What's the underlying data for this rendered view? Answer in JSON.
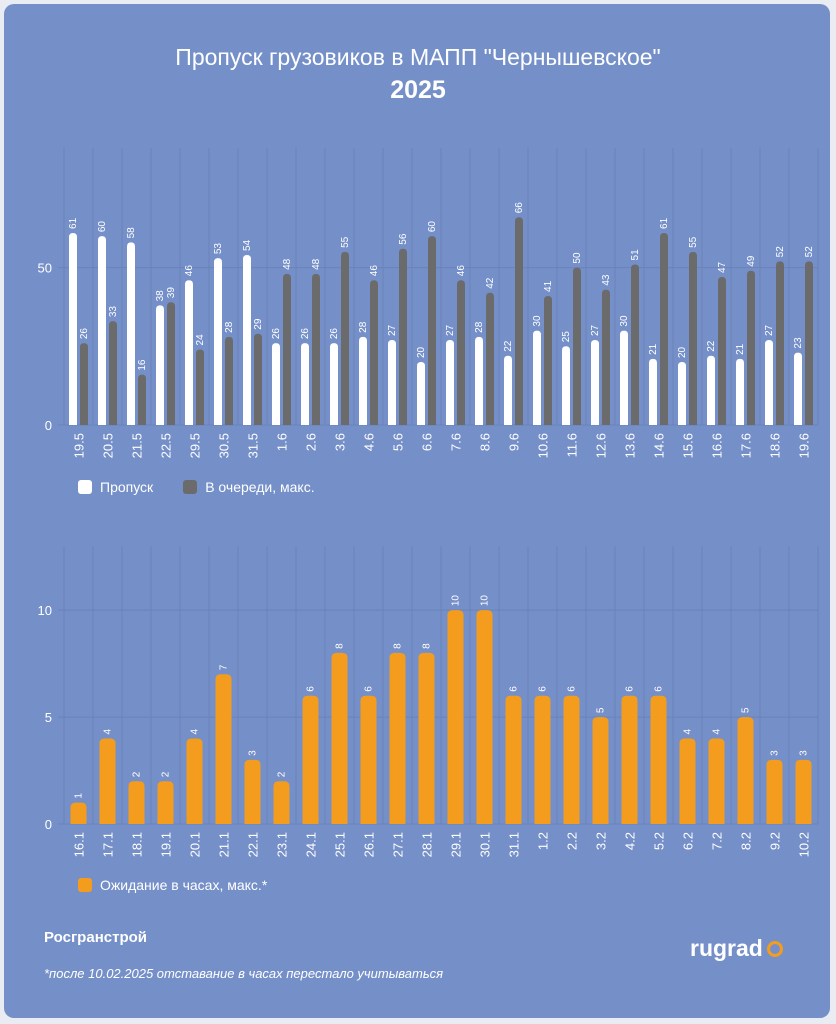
{
  "title": "Пропуск грузовиков в МАПП \"Чернышевское\"",
  "subtitle": "2025",
  "source": "Росгранстрой",
  "footnote": "*после 10.02.2025 отставание в часах перестало учитываться",
  "logo": "rugrad",
  "colors": {
    "background": "#7590c9",
    "white_series": "#ffffff",
    "dark_series": "#6b6b6b",
    "orange_series": "#f39c1d"
  },
  "chart_data": [
    {
      "type": "bar",
      "categories": [
        "19.5",
        "20.5",
        "21.5",
        "22.5",
        "29.5",
        "30.5",
        "31.5",
        "1.6",
        "2.6",
        "3.6",
        "4.6",
        "5.6",
        "6.6",
        "7.6",
        "8.6",
        "9.6",
        "10.6",
        "11.6",
        "12.6",
        "13.6",
        "14.6",
        "15.6",
        "16.6",
        "17.6",
        "18.6",
        "19.6"
      ],
      "series": [
        {
          "name": "Пропуск",
          "values": [
            61,
            60,
            58,
            38,
            46,
            53,
            54,
            26,
            26,
            26,
            28,
            27,
            20,
            27,
            28,
            22,
            30,
            25,
            27,
            30,
            21,
            20,
            22,
            21,
            27,
            23
          ]
        },
        {
          "name": "В очереди, макс.",
          "values": [
            26,
            33,
            16,
            39,
            24,
            28,
            29,
            48,
            48,
            55,
            46,
            56,
            60,
            46,
            42,
            66,
            41,
            50,
            43,
            51,
            61,
            55,
            47,
            49,
            52,
            52
          ]
        }
      ],
      "y_ticks": [
        "0",
        "50"
      ],
      "ylim": [
        0,
        88
      ],
      "legend": "bottom-left"
    },
    {
      "type": "bar",
      "categories": [
        "16.1",
        "17.1",
        "18.1",
        "19.1",
        "20.1",
        "21.1",
        "22.1",
        "23.1",
        "24.1",
        "25.1",
        "26.1",
        "27.1",
        "28.1",
        "29.1",
        "30.1",
        "31.1",
        "1.2",
        "2.2",
        "3.2",
        "4.2",
        "5.2",
        "6.2",
        "7.2",
        "8.2",
        "9.2",
        "10.2"
      ],
      "series": [
        {
          "name": "Ожидание в часах, макс.*",
          "values": [
            1,
            4,
            2,
            2,
            4,
            7,
            3,
            2,
            6,
            8,
            6,
            8,
            8,
            10,
            10,
            6,
            6,
            6,
            5,
            6,
            6,
            4,
            4,
            5,
            3,
            3
          ]
        }
      ],
      "y_ticks": [
        "0",
        "5",
        "10"
      ],
      "ylim": [
        0,
        13
      ],
      "legend": "bottom-left"
    }
  ]
}
